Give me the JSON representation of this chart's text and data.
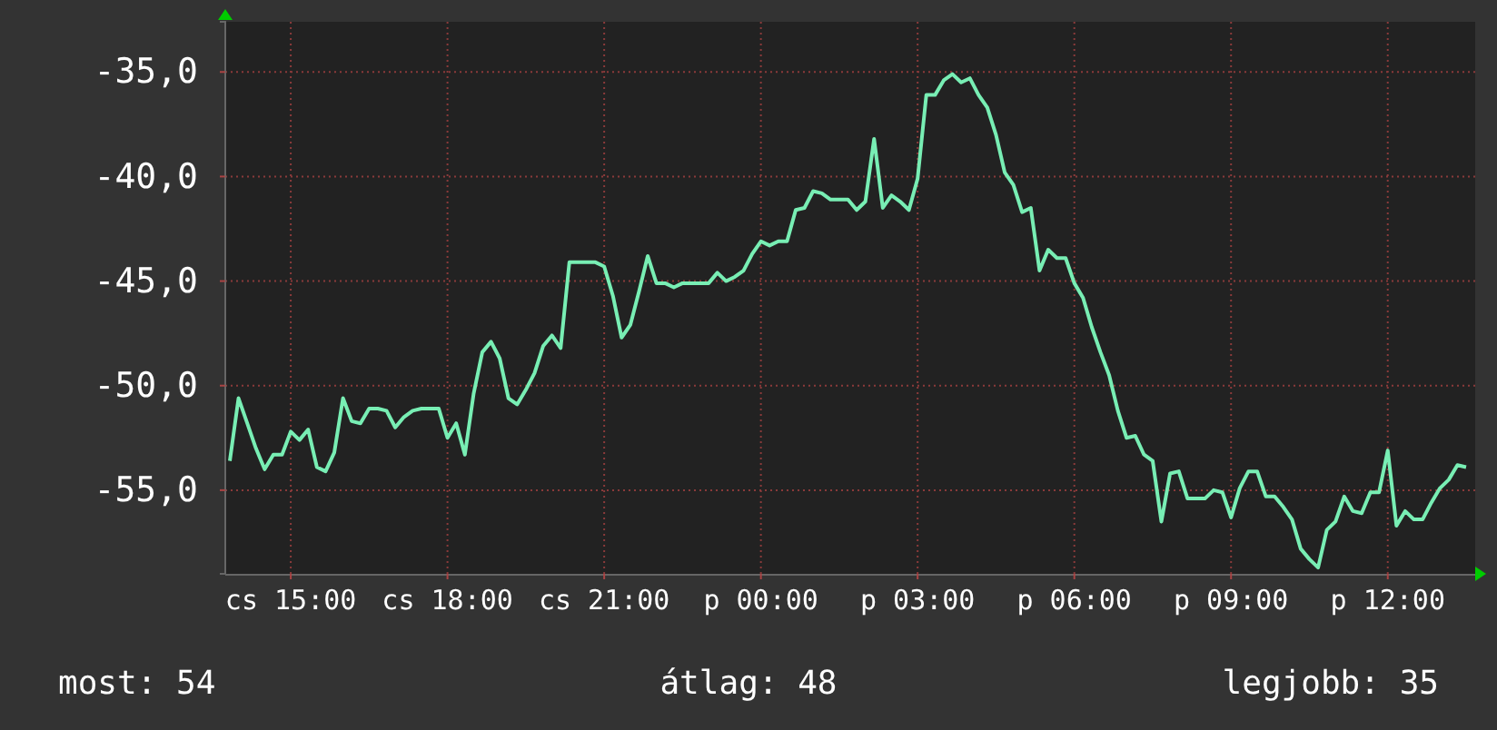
{
  "chart_data": {
    "type": "line",
    "categories": [
      null,
      null,
      null,
      null,
      null,
      null,
      null,
      "cs 15:00",
      null,
      null,
      null,
      null,
      null,
      null,
      null,
      null,
      null,
      null,
      null,
      null,
      null,
      null,
      null,
      null,
      null,
      "cs 18:00",
      null,
      null,
      null,
      null,
      null,
      null,
      null,
      null,
      null,
      null,
      null,
      null,
      null,
      null,
      null,
      null,
      null,
      "cs 21:00",
      null,
      null,
      null,
      null,
      null,
      null,
      null,
      null,
      null,
      null,
      null,
      null,
      null,
      null,
      null,
      null,
      null,
      "p 00:00",
      null,
      null,
      null,
      null,
      null,
      null,
      null,
      null,
      null,
      null,
      null,
      null,
      null,
      null,
      null,
      null,
      null,
      "p 03:00",
      null,
      null,
      null,
      null,
      null,
      null,
      null,
      null,
      null,
      null,
      null,
      null,
      null,
      null,
      null,
      null,
      null,
      "p 06:00",
      null,
      null,
      null,
      null,
      null,
      null,
      null,
      null,
      null,
      null,
      null,
      null,
      null,
      null,
      null,
      null,
      null,
      "p 09:00",
      null,
      null,
      null,
      null,
      null,
      null,
      null,
      null,
      null,
      null,
      null,
      null,
      null,
      null,
      null,
      null,
      null,
      "p 12:00",
      null,
      null,
      null,
      null,
      null,
      null,
      null,
      null,
      null
    ],
    "series": [
      {
        "color": "#78eeb4",
        "values": [
          -53.6,
          -50.6,
          -51.8,
          -53.0,
          -54.0,
          -53.3,
          -53.3,
          -52.2,
          -52.6,
          -52.1,
          -53.9,
          -54.1,
          -53.2,
          -50.6,
          -51.7,
          -51.8,
          -51.1,
          -51.1,
          -51.2,
          -52.0,
          -51.5,
          -51.2,
          -51.1,
          -51.1,
          -51.1,
          -52.5,
          -51.8,
          -53.3,
          -50.4,
          -48.4,
          -47.9,
          -48.7,
          -50.6,
          -50.9,
          -50.2,
          -49.4,
          -48.1,
          -47.6,
          -48.2,
          -44.1,
          -44.1,
          -44.1,
          -44.1,
          -44.3,
          -45.7,
          -47.7,
          -47.1,
          -45.5,
          -43.8,
          -45.1,
          -45.1,
          -45.3,
          -45.1,
          -45.1,
          -45.1,
          -45.1,
          -44.6,
          -45.0,
          -44.8,
          -44.5,
          -43.7,
          -43.1,
          -43.3,
          -43.1,
          -43.1,
          -41.6,
          -41.5,
          -40.7,
          -40.8,
          -41.1,
          -41.1,
          -41.1,
          -41.6,
          -41.2,
          -38.2,
          -41.5,
          -40.9,
          -41.2,
          -41.6,
          -40.1,
          -36.1,
          -36.1,
          -35.4,
          -35.1,
          -35.5,
          -35.3,
          -36.1,
          -36.7,
          -38.0,
          -39.8,
          -40.4,
          -41.7,
          -41.5,
          -44.5,
          -43.5,
          -43.9,
          -43.9,
          -45.1,
          -45.8,
          -47.2,
          -48.4,
          -49.5,
          -51.2,
          -52.5,
          -52.4,
          -53.3,
          -53.6,
          -56.5,
          -54.2,
          -54.1,
          -55.4,
          -55.4,
          -55.4,
          -55.0,
          -55.1,
          -56.3,
          -54.9,
          -54.1,
          -54.1,
          -55.3,
          -55.3,
          -55.8,
          -56.4,
          -57.8,
          -58.3,
          -58.7,
          -56.9,
          -56.5,
          -55.3,
          -56.0,
          -56.1,
          -55.1,
          -55.1,
          -53.1,
          -56.7,
          -56.0,
          -56.4,
          -56.4,
          -55.6,
          -54.9,
          -54.5,
          -53.8,
          -53.9
        ]
      }
    ],
    "ylim": [
      -59,
      -32.6
    ],
    "yticks": [
      {
        "value": -55,
        "label": "-55,0"
      },
      {
        "value": -50,
        "label": "-50,0"
      },
      {
        "value": -45,
        "label": "-45,0"
      },
      {
        "value": -40,
        "label": "-40,0"
      },
      {
        "value": -35,
        "label": "-35,0"
      }
    ],
    "grid": true,
    "annotations": [
      "most: 54",
      "átlag: 48",
      "legjobb: 35"
    ]
  }
}
